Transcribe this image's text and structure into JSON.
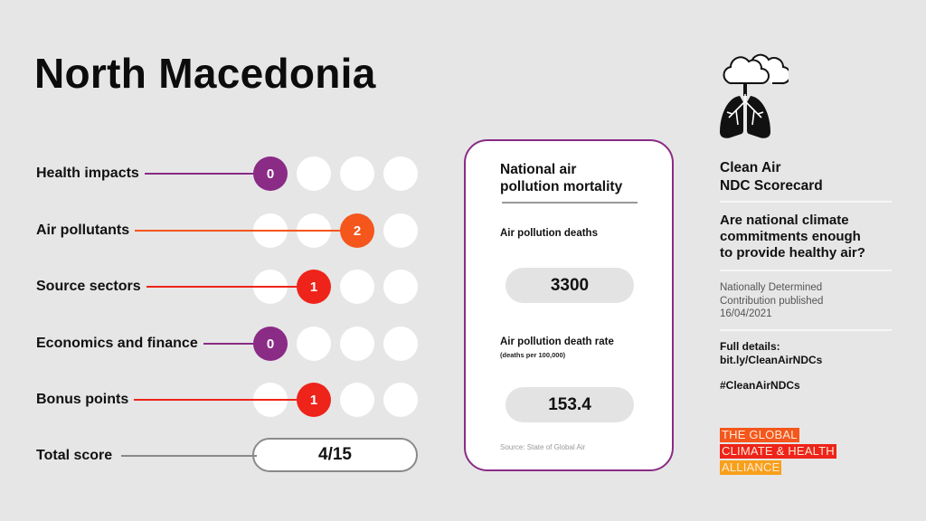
{
  "header": {
    "title": "North Macedonia"
  },
  "scorecard": {
    "rows": [
      {
        "label": "Health impacts",
        "score": "0",
        "active_index": 0,
        "color": "#8a2b86"
      },
      {
        "label": "Air pollutants",
        "score": "2",
        "active_index": 2,
        "color": "#f4561c"
      },
      {
        "label": "Source sectors",
        "score": "1",
        "active_index": 1,
        "color": "#ee2319"
      },
      {
        "label": "Economics and finance",
        "score": "0",
        "active_index": 0,
        "color": "#8a2b86"
      },
      {
        "label": "Bonus points",
        "score": "1",
        "active_index": 1,
        "color": "#ee2319"
      }
    ],
    "total": {
      "label": "Total score",
      "value": "4/15"
    }
  },
  "mortality_card": {
    "title_line1": "National air",
    "title_line2": "pollution mortality",
    "deaths_label": "Air pollution deaths",
    "deaths_value": "3300",
    "rate_label": "Air pollution death rate",
    "rate_sublabel": "(deaths per 100,000)",
    "rate_value": "153.4",
    "source": "Source: State of Global Air",
    "border_color": "#8a2b86"
  },
  "sidebar": {
    "icon": "cloud-lungs-icon",
    "title_line1": "Clean Air",
    "title_line2": "NDC Scorecard",
    "question_line1": "Are national climate",
    "question_line2": "commitments enough",
    "question_line3": "to provide healthy air?",
    "ndc_line1": "Nationally Determined",
    "ndc_line2": "Contribution published",
    "ndc_line3": "16/04/2021",
    "details_line1": "Full details:",
    "details_line2": "bit.ly/CleanAirNDCs",
    "hashtag": "#CleanAirNDCs",
    "logo": {
      "line1": "THE GLOBAL",
      "line2": "CLIMATE & HEALTH",
      "line3": "ALLIANCE",
      "colors": [
        "#f4561c",
        "#ee2319",
        "#f7a01b"
      ]
    }
  }
}
